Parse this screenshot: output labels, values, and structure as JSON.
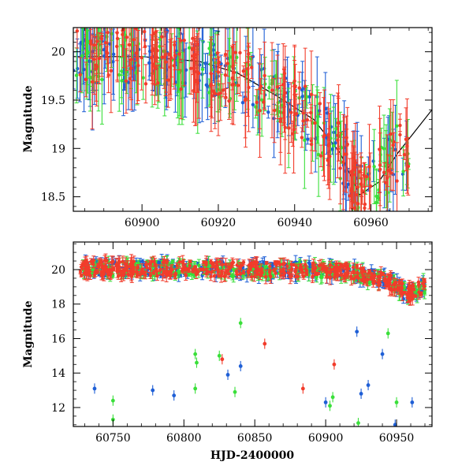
{
  "chart_data": [
    {
      "type": "scatter",
      "panel": "top",
      "title": "",
      "xlabel": "",
      "ylabel": "Magnitude",
      "xlim": [
        60882,
        60976
      ],
      "ylim": [
        20.25,
        18.35
      ],
      "y_inverted": true,
      "xticks": [
        60900,
        60920,
        60940,
        60960
      ],
      "xtick_labels": [
        "60900",
        "60920",
        "60940",
        "60960"
      ],
      "yticks": [
        18.5,
        19,
        19.5,
        20
      ],
      "ytick_labels": [
        "18.5",
        "19",
        "19.5",
        "20"
      ],
      "grid": false,
      "legend": "none",
      "series": [
        {
          "color": "#1f5fd6",
          "seed": 11,
          "x_range": [
            60882,
            60970
          ],
          "count": 150
        },
        {
          "color": "#3adf3a",
          "seed": 23,
          "x_range": [
            60882,
            60970
          ],
          "count": 150
        },
        {
          "color": "#f23c2b",
          "seed": 37,
          "x_range": [
            60882,
            60970
          ],
          "count": 220
        }
      ],
      "model_curve": {
        "color": "#000000",
        "x": [
          60882,
          60900,
          60915,
          60925,
          60935,
          60945,
          60952,
          60957,
          60962,
          60967,
          60971,
          60976
        ],
        "y": [
          19.95,
          19.95,
          19.9,
          19.78,
          19.55,
          19.3,
          18.95,
          18.52,
          18.65,
          18.95,
          19.15,
          19.4
        ]
      }
    },
    {
      "type": "scatter",
      "panel": "bottom",
      "title": "",
      "xlabel": "HJD-2400000",
      "ylabel": "Magnitude",
      "xlim": [
        60722,
        60975
      ],
      "ylim": [
        21.6,
        10.9
      ],
      "y_inverted": true,
      "xticks": [
        60750,
        60800,
        60850,
        60900,
        60950
      ],
      "xtick_labels": [
        "60750",
        "60800",
        "60850",
        "60900",
        "60950"
      ],
      "yticks": [
        12,
        14,
        16,
        18,
        20
      ],
      "ytick_labels": [
        "12",
        "14",
        "16",
        "18",
        "20"
      ],
      "grid": false,
      "legend": "none",
      "series": [
        {
          "color": "#1f5fd6",
          "seed": 41,
          "x_range": [
            60727,
            60970
          ],
          "count": 320
        },
        {
          "color": "#3adf3a",
          "seed": 53,
          "x_range": [
            60727,
            60970
          ],
          "count": 300
        },
        {
          "color": "#f23c2b",
          "seed": 67,
          "x_range": [
            60727,
            60970
          ],
          "count": 420
        }
      ],
      "outliers": [
        {
          "x": 60737,
          "y": 13.1,
          "color": "#1f5fd6"
        },
        {
          "x": 60750,
          "y": 11.3,
          "color": "#3adf3a"
        },
        {
          "x": 60750,
          "y": 12.4,
          "color": "#3adf3a"
        },
        {
          "x": 60778,
          "y": 13.0,
          "color": "#1f5fd6"
        },
        {
          "x": 60793,
          "y": 12.7,
          "color": "#1f5fd6"
        },
        {
          "x": 60808,
          "y": 13.1,
          "color": "#3adf3a"
        },
        {
          "x": 60808,
          "y": 15.1,
          "color": "#3adf3a"
        },
        {
          "x": 60809,
          "y": 14.6,
          "color": "#3adf3a"
        },
        {
          "x": 60825,
          "y": 15.0,
          "color": "#3adf3a"
        },
        {
          "x": 60827,
          "y": 14.8,
          "color": "#f23c2b"
        },
        {
          "x": 60831,
          "y": 13.9,
          "color": "#1f5fd6"
        },
        {
          "x": 60836,
          "y": 12.9,
          "color": "#3adf3a"
        },
        {
          "x": 60840,
          "y": 14.4,
          "color": "#1f5fd6"
        },
        {
          "x": 60840,
          "y": 16.9,
          "color": "#3adf3a"
        },
        {
          "x": 60857,
          "y": 15.7,
          "color": "#f23c2b"
        },
        {
          "x": 60884,
          "y": 13.1,
          "color": "#f23c2b"
        },
        {
          "x": 60900,
          "y": 12.3,
          "color": "#1f5fd6"
        },
        {
          "x": 60903,
          "y": 12.1,
          "color": "#3adf3a"
        },
        {
          "x": 60905,
          "y": 12.6,
          "color": "#3adf3a"
        },
        {
          "x": 60906,
          "y": 14.5,
          "color": "#f23c2b"
        },
        {
          "x": 60922,
          "y": 16.4,
          "color": "#1f5fd6"
        },
        {
          "x": 60923,
          "y": 11.1,
          "color": "#3adf3a"
        },
        {
          "x": 60925,
          "y": 12.8,
          "color": "#1f5fd6"
        },
        {
          "x": 60930,
          "y": 13.3,
          "color": "#1f5fd6"
        },
        {
          "x": 60940,
          "y": 15.1,
          "color": "#1f5fd6"
        },
        {
          "x": 60944,
          "y": 16.3,
          "color": "#3adf3a"
        },
        {
          "x": 60949,
          "y": 11.0,
          "color": "#1f5fd6"
        },
        {
          "x": 60950,
          "y": 12.3,
          "color": "#3adf3a"
        },
        {
          "x": 60961,
          "y": 12.3,
          "color": "#1f5fd6"
        }
      ]
    }
  ]
}
